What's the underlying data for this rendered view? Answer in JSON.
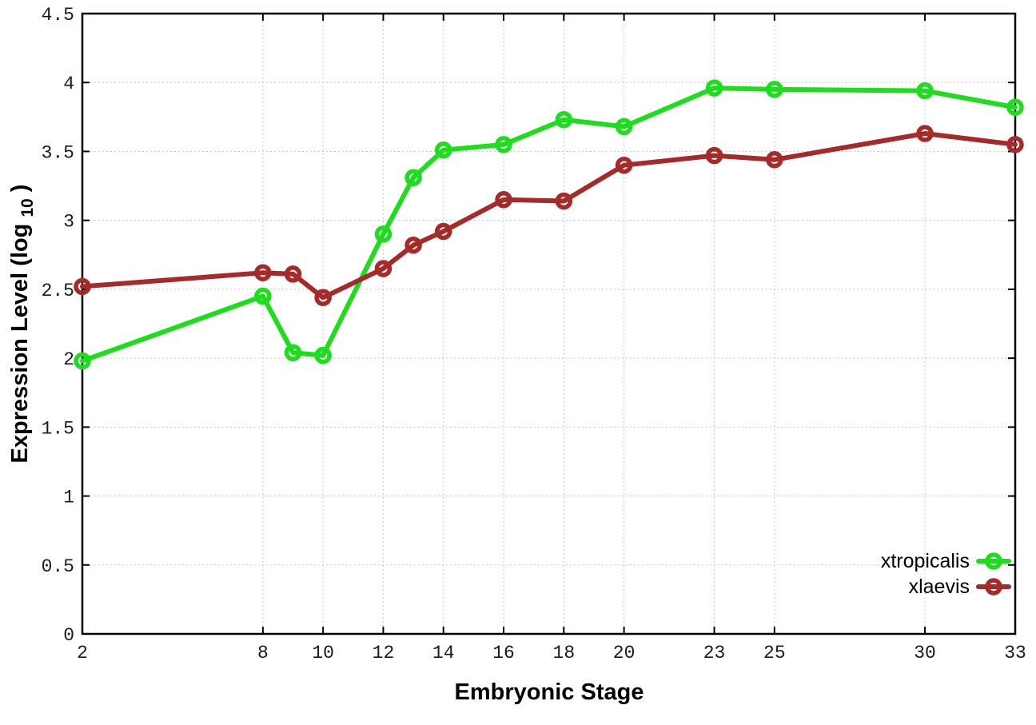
{
  "chart": {
    "background": "#ffffff",
    "border_color": "#000000",
    "grid_color": "#b8b8b8",
    "xlabel": "Embryonic Stage",
    "ylabel": {
      "prefix": "Expression Level (log",
      "sub": "10",
      "suffix": ")"
    },
    "legend": {
      "position": "bottom-right",
      "entries": [
        {
          "label": "xtropicalis",
          "color": "#1ddd1d"
        },
        {
          "label": "xlaevis",
          "color": "#a52a2a"
        }
      ]
    }
  },
  "chart_data": {
    "type": "line",
    "title": "",
    "xlabel": "Embryonic Stage",
    "ylabel": "Expression Level (log10)",
    "x": [
      2,
      8,
      9,
      10,
      12,
      13,
      14,
      16,
      18,
      20,
      23,
      25,
      30,
      33
    ],
    "series": [
      {
        "name": "xtropicalis",
        "color": "#1ddd1d",
        "marker": "open-circle",
        "values": [
          1.98,
          2.45,
          2.04,
          2.02,
          2.9,
          3.31,
          3.51,
          3.55,
          3.73,
          3.68,
          3.96,
          3.95,
          3.94,
          3.82
        ]
      },
      {
        "name": "xlaevis",
        "color": "#a52a2a",
        "marker": "open-circle",
        "values": [
          2.52,
          2.62,
          2.61,
          2.44,
          2.65,
          2.82,
          2.92,
          3.15,
          3.14,
          3.4,
          3.47,
          3.44,
          3.63,
          3.55
        ]
      }
    ],
    "xlim": [
      2,
      33
    ],
    "ylim": [
      0,
      4.5
    ],
    "xticks": [
      2,
      8,
      10,
      12,
      14,
      16,
      18,
      20,
      23,
      25,
      30,
      33
    ],
    "ytick_step": 0.5,
    "yticks": [
      0,
      0.5,
      1,
      1.5,
      2,
      2.5,
      3,
      3.5,
      4,
      4.5
    ],
    "grid": true,
    "legend_position": "bottom-right"
  }
}
